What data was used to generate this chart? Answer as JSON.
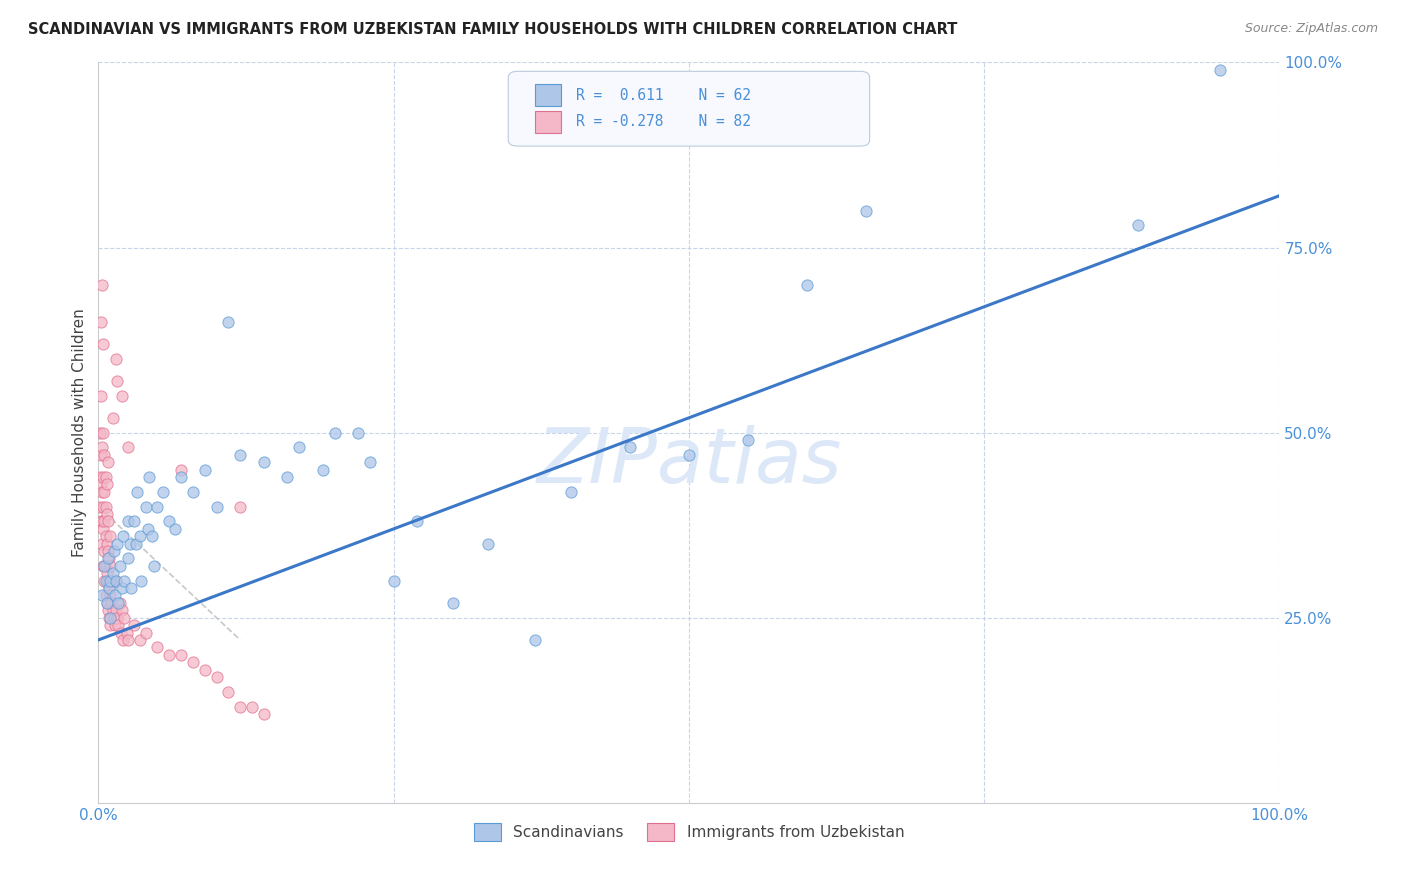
{
  "title": "SCANDINAVIAN VS IMMIGRANTS FROM UZBEKISTAN FAMILY HOUSEHOLDS WITH CHILDREN CORRELATION CHART",
  "source": "Source: ZipAtlas.com",
  "ylabel": "Family Households with Children",
  "watermark": "ZIPatlas",
  "blue_color": "#aec6e8",
  "blue_edge_color": "#5b9bd5",
  "pink_color": "#f4b8c8",
  "pink_edge_color": "#e07090",
  "blue_line_color": "#3c78c8",
  "pink_line_color": "#c8c8c8",
  "blue_regression": [
    0.0,
    0.22,
    1.0,
    0.82
  ],
  "pink_regression": [
    0.0,
    0.4,
    0.12,
    0.22
  ],
  "legend_r1": "R =  0.611",
  "legend_n1": "N = 62",
  "legend_r2": "R = -0.278",
  "legend_n2": "N = 82",
  "title_fontsize": 10.5,
  "source_fontsize": 9,
  "watermark_fontsize": 55,
  "watermark_color": "#dce8f8",
  "bg_color": "#ffffff",
  "grid_color": "#c8d4e8",
  "axis_color": "#4a90d9",
  "ylabel_color": "#444444",
  "scatter_alpha": 0.75,
  "scatter_size": 65,
  "blue_points_x": [
    0.003,
    0.005,
    0.006,
    0.007,
    0.008,
    0.009,
    0.01,
    0.01,
    0.012,
    0.013,
    0.014,
    0.015,
    0.016,
    0.017,
    0.018,
    0.02,
    0.021,
    0.022,
    0.025,
    0.025,
    0.027,
    0.028,
    0.03,
    0.032,
    0.033,
    0.035,
    0.036,
    0.04,
    0.042,
    0.043,
    0.045,
    0.047,
    0.05,
    0.055,
    0.06,
    0.065,
    0.07,
    0.08,
    0.09,
    0.1,
    0.11,
    0.12,
    0.14,
    0.16,
    0.17,
    0.19,
    0.2,
    0.22,
    0.23,
    0.25,
    0.27,
    0.3,
    0.33,
    0.37,
    0.4,
    0.45,
    0.5,
    0.55,
    0.6,
    0.65,
    0.88,
    0.95
  ],
  "blue_points_y": [
    0.28,
    0.32,
    0.3,
    0.27,
    0.33,
    0.29,
    0.25,
    0.3,
    0.31,
    0.34,
    0.28,
    0.3,
    0.35,
    0.27,
    0.32,
    0.29,
    0.36,
    0.3,
    0.38,
    0.33,
    0.35,
    0.29,
    0.38,
    0.35,
    0.42,
    0.36,
    0.3,
    0.4,
    0.37,
    0.44,
    0.36,
    0.32,
    0.4,
    0.42,
    0.38,
    0.37,
    0.44,
    0.42,
    0.45,
    0.4,
    0.65,
    0.47,
    0.46,
    0.44,
    0.48,
    0.45,
    0.5,
    0.5,
    0.46,
    0.3,
    0.38,
    0.27,
    0.35,
    0.22,
    0.42,
    0.48,
    0.47,
    0.49,
    0.7,
    0.8,
    0.78,
    0.99
  ],
  "pink_points_x": [
    0.001,
    0.001,
    0.001,
    0.002,
    0.002,
    0.002,
    0.002,
    0.003,
    0.003,
    0.003,
    0.003,
    0.004,
    0.004,
    0.004,
    0.004,
    0.004,
    0.005,
    0.005,
    0.005,
    0.005,
    0.005,
    0.006,
    0.006,
    0.006,
    0.006,
    0.006,
    0.007,
    0.007,
    0.007,
    0.007,
    0.007,
    0.008,
    0.008,
    0.008,
    0.008,
    0.009,
    0.009,
    0.009,
    0.01,
    0.01,
    0.01,
    0.01,
    0.011,
    0.012,
    0.012,
    0.013,
    0.014,
    0.015,
    0.015,
    0.016,
    0.017,
    0.018,
    0.019,
    0.02,
    0.021,
    0.022,
    0.024,
    0.025,
    0.03,
    0.035,
    0.04,
    0.05,
    0.06,
    0.07,
    0.08,
    0.09,
    0.1,
    0.11,
    0.12,
    0.13,
    0.14,
    0.015,
    0.02,
    0.025,
    0.07,
    0.12,
    0.016,
    0.012,
    0.008,
    0.004,
    0.003,
    0.002
  ],
  "pink_points_y": [
    0.4,
    0.44,
    0.5,
    0.38,
    0.43,
    0.47,
    0.55,
    0.35,
    0.38,
    0.42,
    0.48,
    0.32,
    0.37,
    0.4,
    0.44,
    0.5,
    0.3,
    0.34,
    0.38,
    0.42,
    0.47,
    0.28,
    0.32,
    0.36,
    0.4,
    0.44,
    0.27,
    0.31,
    0.35,
    0.39,
    0.43,
    0.26,
    0.3,
    0.34,
    0.38,
    0.25,
    0.29,
    0.33,
    0.24,
    0.28,
    0.32,
    0.36,
    0.27,
    0.26,
    0.3,
    0.25,
    0.24,
    0.26,
    0.3,
    0.25,
    0.24,
    0.27,
    0.23,
    0.26,
    0.22,
    0.25,
    0.23,
    0.22,
    0.24,
    0.22,
    0.23,
    0.21,
    0.2,
    0.2,
    0.19,
    0.18,
    0.17,
    0.15,
    0.13,
    0.13,
    0.12,
    0.6,
    0.55,
    0.48,
    0.45,
    0.4,
    0.57,
    0.52,
    0.46,
    0.62,
    0.7,
    0.65
  ]
}
